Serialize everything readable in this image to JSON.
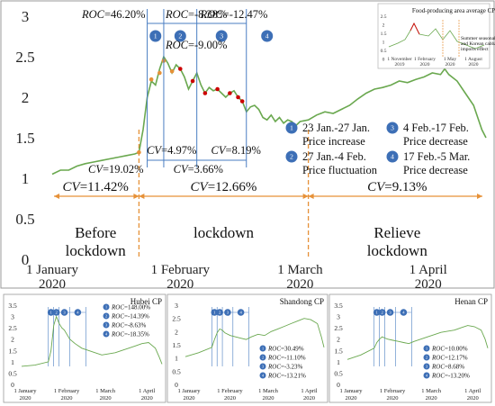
{
  "chart_data": [
    {
      "type": "line",
      "ylim": [
        0,
        3
      ],
      "xlim": [
        0,
        105
      ],
      "y_ticks": [
        "0",
        "0.5",
        "1",
        "1.5",
        "2",
        "2.5",
        "3"
      ],
      "y_tick_values": [
        0,
        0.5,
        1,
        1.5,
        2,
        2.5,
        3
      ],
      "x_ticks": [
        {
          "x": 0,
          "line1": "1 January",
          "line2": "2020"
        },
        {
          "x": 31,
          "line1": "1 February",
          "line2": "2020"
        },
        {
          "x": 60,
          "line1": "1 March",
          "line2": "2020"
        },
        {
          "x": 91,
          "line1": "1 April",
          "line2": "2020"
        }
      ],
      "series": [
        {
          "color": "#6aa84f",
          "x": [
            0,
            2,
            4,
            6,
            8,
            10,
            12,
            14,
            16,
            18,
            20,
            21,
            22,
            23,
            24,
            25,
            26,
            27,
            28,
            29,
            30,
            31,
            32,
            33,
            34,
            35,
            36,
            37,
            38,
            39,
            40,
            41,
            42,
            43,
            44,
            45,
            46,
            47,
            48,
            49,
            50,
            51,
            52,
            53,
            54,
            55,
            56,
            57,
            58,
            59,
            60,
            62,
            64,
            66,
            68,
            70,
            72,
            74,
            76,
            78,
            80,
            82,
            84,
            86,
            88,
            90,
            92,
            94,
            95,
            96,
            98,
            100,
            102,
            104,
            105
          ],
          "y": [
            1.05,
            1.1,
            1.1,
            1.15,
            1.18,
            1.2,
            1.22,
            1.24,
            1.26,
            1.28,
            1.3,
            1.32,
            1.6,
            2.0,
            2.2,
            2.15,
            2.35,
            2.5,
            2.42,
            2.3,
            2.4,
            2.35,
            2.25,
            2.1,
            2.2,
            2.3,
            2.15,
            2.05,
            2.12,
            2.08,
            2.1,
            2.05,
            2.0,
            2.05,
            2.08,
            2.0,
            1.95,
            1.82,
            1.88,
            1.9,
            1.85,
            1.75,
            1.72,
            1.78,
            1.7,
            1.75,
            1.68,
            1.72,
            1.7,
            1.65,
            1.7,
            1.72,
            1.78,
            1.82,
            1.8,
            1.85,
            1.9,
            1.98,
            2.05,
            2.1,
            2.12,
            2.15,
            2.2,
            2.18,
            2.22,
            2.25,
            2.3,
            2.28,
            2.35,
            2.28,
            2.2,
            2.05,
            1.9,
            1.6,
            1.5
          ]
        }
      ],
      "markers": [
        {
          "x": 24,
          "y": 2.22,
          "color": "#e69138"
        },
        {
          "x": 26,
          "y": 2.3,
          "color": "#e69138"
        },
        {
          "x": 27,
          "y": 2.45,
          "color": "#e69138"
        },
        {
          "x": 29,
          "y": 2.32,
          "color": "#e69138"
        },
        {
          "x": 31,
          "y": 2.35,
          "color": "#cc0000"
        },
        {
          "x": 34,
          "y": 2.2,
          "color": "#cc0000"
        },
        {
          "x": 37,
          "y": 2.05,
          "color": "#cc0000"
        },
        {
          "x": 40,
          "y": 2.1,
          "color": "#cc0000"
        },
        {
          "x": 43,
          "y": 2.05,
          "color": "#cc0000"
        },
        {
          "x": 45,
          "y": 2.0,
          "color": "#cc0000"
        },
        {
          "x": 46,
          "y": 1.95,
          "color": "#cc0000"
        },
        {
          "x": 21,
          "y": 1.32,
          "color": "#e69138"
        }
      ],
      "phase_lines_x": [
        23,
        27,
        35,
        47
      ],
      "phase_labels": [
        {
          "n": "1",
          "x_mid": 25
        },
        {
          "n": "2",
          "x_mid": 31
        },
        {
          "n": "3",
          "x_mid": 41
        },
        {
          "n": "4",
          "x_mid": 52
        }
      ],
      "roc_labels": [
        {
          "text": "ROC=46.20%"
        },
        {
          "text": "ROC=-8.38%"
        },
        {
          "text": "ROC=-12.47%"
        },
        {
          "text": "ROC=-9.00%"
        }
      ],
      "cv_labels": [
        {
          "text": "CV=19.02%"
        },
        {
          "text": "CV=4.97%"
        },
        {
          "text": "CV=3.66%"
        },
        {
          "text": "CV=8.19%"
        }
      ],
      "period_boundaries_x": [
        21,
        62
      ],
      "periods": [
        {
          "cv": "CV=11.42%",
          "line1": "Before",
          "line2": "lockdown"
        },
        {
          "cv": "CV=12.66%",
          "line1": "lockdown",
          "line2": ""
        },
        {
          "cv": "CV=9.13%",
          "line1": "Relieve",
          "line2": "lockdown"
        }
      ],
      "legend": [
        {
          "n": "1",
          "line1": "23 Jan.-27 Jan.",
          "line2": "Price increase"
        },
        {
          "n": "2",
          "line1": "27 Jan.-4 Feb.",
          "line2": "Price fluctuation"
        },
        {
          "n": "3",
          "line1": "4 Feb.-17 Feb.",
          "line2": "Price decrease"
        },
        {
          "n": "4",
          "line1": "17 Feb.-5 Mar.",
          "line2": "Price decrease"
        }
      ],
      "inset": {
        "title": "Food-producing area average CP",
        "note_line1": "Summer seasonality",
        "note_line2": "and Korean cabbage",
        "note_line3": "imports effect",
        "y_ticks": [
          "2.5",
          "2",
          "1.5",
          "1",
          "0.5",
          "0"
        ],
        "x_ticks": [
          {
            "line1": "1 November",
            "line2": "2019"
          },
          {
            "line1": "1 February",
            "line2": "2020"
          },
          {
            "line1": "1 May",
            "line2": "2020"
          },
          {
            "line1": "1 August",
            "line2": "2020"
          }
        ]
      }
    },
    {
      "type": "line",
      "title": "Hubei CP",
      "ylim": [
        0,
        3.5
      ],
      "y_ticks": [
        "3.5",
        "3",
        "2.5",
        "2",
        "1.5",
        "1",
        "0.5",
        "0"
      ],
      "x_ticks": [
        {
          "line1": "1 January",
          "line2": "2020"
        },
        {
          "line1": "1 February",
          "line2": "2020"
        },
        {
          "line1": "1 March",
          "line2": "2020"
        },
        {
          "line1": "1 April",
          "line2": "2020"
        }
      ],
      "series": [
        {
          "color": "#6aa84f",
          "x": [
            0,
            10,
            20,
            22,
            24,
            26,
            28,
            30,
            32,
            34,
            36,
            40,
            45,
            50,
            55,
            60,
            65,
            70,
            75,
            80,
            85,
            90,
            95,
            100,
            103,
            105
          ],
          "y": [
            0.8,
            0.85,
            1.0,
            1.5,
            2.6,
            3.0,
            2.7,
            2.5,
            2.4,
            2.2,
            2.0,
            1.8,
            1.6,
            1.5,
            1.4,
            1.3,
            1.35,
            1.4,
            1.5,
            1.6,
            1.7,
            1.8,
            1.85,
            1.6,
            1.2,
            0.9
          ]
        }
      ],
      "roc": [
        "ROC=148.00%",
        "ROC=-14.39%",
        "ROC=-8.63%",
        "ROC=-18.35%"
      ]
    },
    {
      "type": "line",
      "title": "Shandong CP",
      "ylim": [
        0,
        3
      ],
      "y_ticks": [
        "3",
        "2.5",
        "2",
        "1.5",
        "1",
        "0.5",
        "0"
      ],
      "x_ticks": [
        {
          "line1": "1 January",
          "line2": "2020"
        },
        {
          "line1": "1 February",
          "line2": "2020"
        },
        {
          "line1": "1 March",
          "line2": "2020"
        },
        {
          "line1": "1 April",
          "line2": "2020"
        }
      ],
      "series": [
        {
          "color": "#6aa84f",
          "x": [
            0,
            10,
            20,
            22,
            24,
            26,
            28,
            30,
            34,
            38,
            42,
            46,
            50,
            55,
            60,
            65,
            70,
            75,
            80,
            85,
            90,
            95,
            100,
            103,
            105
          ],
          "y": [
            1.05,
            1.2,
            1.4,
            1.7,
            1.95,
            2.1,
            2.05,
            1.95,
            1.85,
            1.8,
            1.75,
            1.7,
            1.8,
            1.9,
            1.85,
            2.0,
            2.1,
            2.2,
            2.3,
            2.4,
            2.5,
            2.45,
            2.3,
            1.8,
            1.4
          ]
        }
      ],
      "roc": [
        "ROC=30.49%",
        "ROC=-11.10%",
        "ROC=-3.23%",
        "ROC=-13.21%"
      ]
    },
    {
      "type": "line",
      "title": "Henan CP",
      "ylim": [
        0,
        3.5
      ],
      "y_ticks": [
        "3.5",
        "3",
        "2.5",
        "2",
        "1.5",
        "1",
        "0.5",
        "0"
      ],
      "x_ticks": [
        {
          "line1": "1 January",
          "line2": "2020"
        },
        {
          "line1": "1 February",
          "line2": "2020"
        },
        {
          "line1": "1 March",
          "line2": "2020"
        },
        {
          "line1": "1 April",
          "line2": "2020"
        }
      ],
      "series": [
        {
          "color": "#6aa84f",
          "x": [
            0,
            10,
            20,
            22,
            24,
            26,
            28,
            30,
            34,
            38,
            42,
            46,
            50,
            55,
            60,
            65,
            70,
            75,
            80,
            85,
            90,
            95,
            100,
            103,
            105
          ],
          "y": [
            1.1,
            1.3,
            1.6,
            1.85,
            2.0,
            2.1,
            2.05,
            2.0,
            1.95,
            1.9,
            1.85,
            1.8,
            1.9,
            2.0,
            2.1,
            2.2,
            2.3,
            2.35,
            2.4,
            2.5,
            2.6,
            2.55,
            2.4,
            2.0,
            1.6
          ]
        }
      ],
      "roc": [
        "ROC=10.00%",
        "ROC=12.17%",
        "ROC=8.68%",
        "ROC=-13.20%"
      ]
    }
  ]
}
